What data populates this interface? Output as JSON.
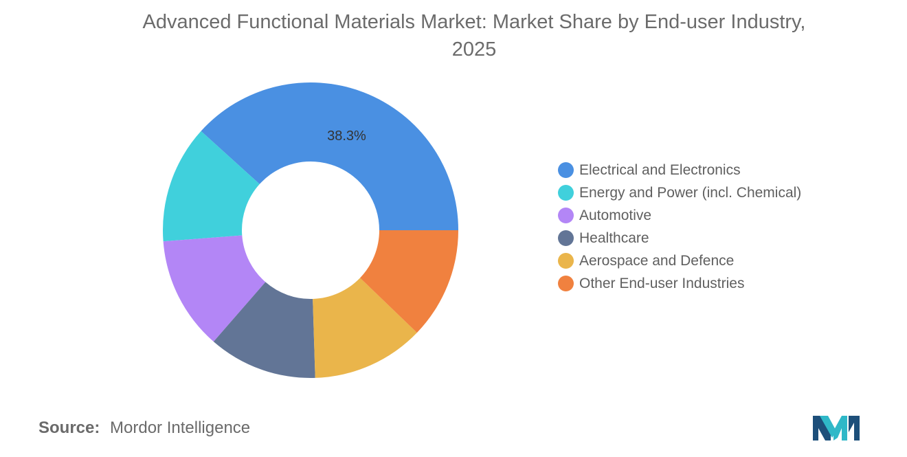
{
  "title": {
    "line1": "Advanced Functional Materials Market: Market Share by End-user Industry,",
    "line2": "2025"
  },
  "chart_data": {
    "type": "pie",
    "donut": true,
    "categories": [
      "Electrical and Electronics",
      "Energy and Power (incl. Chemical)",
      "Automotive",
      "Healthcare",
      "Aerospace and Defence",
      "Other End-user Industries"
    ],
    "values": [
      38.3,
      12.9,
      12.4,
      11.9,
      12.3,
      12.2
    ],
    "colors": [
      "#4a90e2",
      "#40d0dc",
      "#b386f6",
      "#627596",
      "#eab54b",
      "#f0813f"
    ],
    "data_labels": [
      "38.3%",
      "",
      "",
      "",
      "",
      ""
    ],
    "legend_position": "right"
  },
  "source": {
    "label": "Source:",
    "value": "Mordor Intelligence"
  },
  "logo": {
    "name": "mordor-intelligence-logo-icon",
    "colors": [
      "#1d4f7a",
      "#2fb8c8"
    ]
  }
}
